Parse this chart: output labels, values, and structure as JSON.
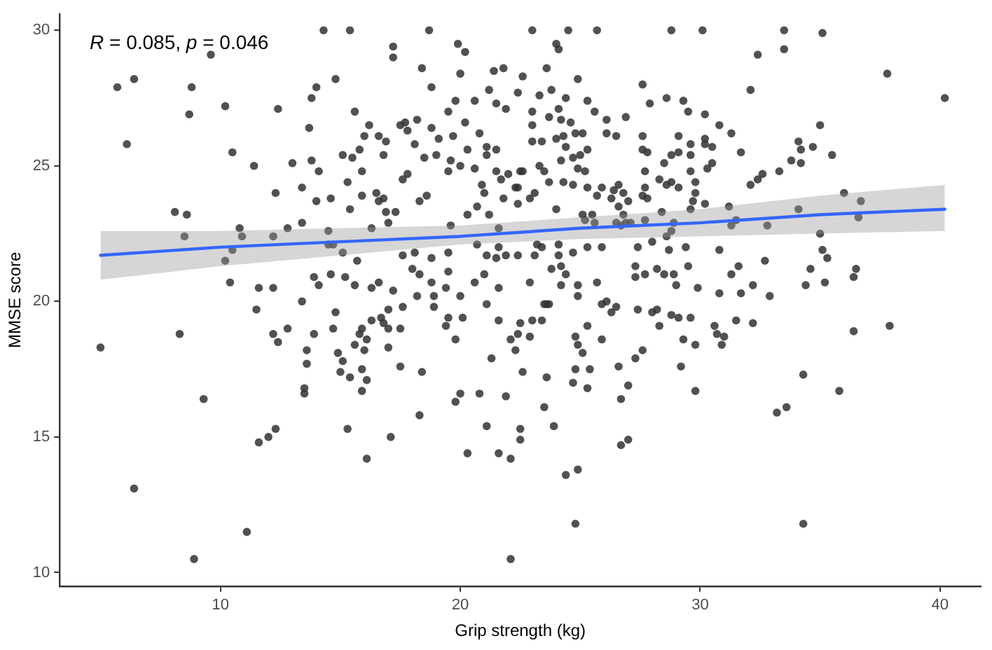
{
  "chart_data": {
    "type": "scatter",
    "xlabel": "Grip strength (kg)",
    "ylabel": "MMSE score",
    "annotations": [
      "R = 0.085, p = 0.046"
    ],
    "xlim": [
      3.3,
      41.7
    ],
    "xticks": [
      10,
      20,
      30,
      40
    ],
    "ylim": [
      9.5,
      30.6
    ],
    "yticks": [
      10,
      15,
      20,
      25,
      30
    ],
    "series": [
      {
        "marker": "circle",
        "color": "#333333",
        "x": [
          14.3,
          15.4,
          18.7,
          23.0,
          24.5,
          25.7,
          28.8,
          30.1,
          33.5,
          35.1,
          5.7,
          6.4,
          6.1,
          9.6,
          8.8,
          8.7,
          10.2,
          10.5,
          11.4,
          12.4,
          8.1,
          8.6,
          8.5,
          10.8,
          10.9,
          10.2,
          10.5,
          10.4,
          11.6,
          12.2,
          12.2,
          12.8,
          13.4,
          12.3,
          13.4,
          13.0,
          13.8,
          14.1,
          13.7,
          13.8,
          14.0,
          14.8,
          15.6,
          17.2,
          17.2,
          18.4,
          19.9,
          20.2,
          20.0,
          18.8,
          21.4,
          21.8,
          21.2,
          22.4,
          20.6,
          19.8,
          19.5,
          21.5,
          21.9,
          16.2,
          16.0,
          16.6,
          16.9,
          17.5,
          17.7,
          18.2,
          17.8,
          18.8,
          19.1,
          19.7,
          20.2,
          20.8,
          18.1,
          21.1,
          21.5,
          20.3,
          19.0,
          18.5,
          19.6,
          20.0,
          19.5,
          20.6,
          21.1,
          21.5,
          22.0,
          21.7,
          22.5,
          20.9,
          21.0,
          21.8,
          22.3,
          20.7,
          21.2,
          20.3,
          19.6,
          21.6,
          20.7,
          21.1,
          21.6,
          21.5,
          21.9,
          19.5,
          19.5,
          18.8,
          18.1,
          17.6,
          18.3,
          18.0,
          18.8,
          19.4,
          20.0,
          21.0,
          20.6,
          21.6,
          21.1,
          18.9,
          18.2,
          17.2,
          16.6,
          16.3,
          15.6,
          15.2,
          14.6,
          13.9,
          14.1,
          13.4,
          15.1,
          14.5,
          15.7,
          16.3,
          17.0,
          16.9,
          16.6,
          15.9,
          15.4,
          14.6,
          14.0,
          15.3,
          15.9,
          15.1,
          15.5,
          15.8,
          16.8,
          17.8,
          17.6,
          18.3,
          18.6,
          17.3,
          16.5,
          16.8,
          14.5,
          14.7,
          24.0,
          24.1,
          32.4,
          33.5,
          37.8,
          40.2,
          23.6,
          22.6,
          24.9,
          23.3,
          23.8,
          24.4,
          27.6,
          32.1,
          25.3,
          27.9,
          28.6,
          29.3,
          29.5,
          30.2,
          30.8,
          31.3,
          35.0,
          25.6,
          24.1,
          23.0,
          23.7,
          24.2,
          23.0,
          24.6,
          26.1,
          26.9,
          24.8,
          25.1,
          26.1,
          26.5,
          27.6,
          29.1,
          23.0,
          23.4,
          24.0,
          24.3,
          25.3,
          24.4,
          25.0,
          24.7,
          24.2,
          27.6,
          27.8,
          28.5,
          28.8,
          29.1,
          29.6,
          29.6,
          30.2,
          30.2,
          30.5,
          30.5,
          30.3,
          29.6,
          31.7,
          34.1,
          34.2,
          34.7,
          35.5,
          33.8,
          34.2,
          33.3,
          32.6,
          32.4,
          32.1,
          27.7,
          28.3,
          28.6,
          28.8,
          29.1,
          29.8,
          29.8,
          29.7,
          30.2,
          29.6,
          31.2,
          27.7,
          27.6,
          27.8,
          26.6,
          26.8,
          26.4,
          26.3,
          27.0,
          26.6,
          25.9,
          25.7,
          25.3,
          25.2,
          24.9,
          24.7,
          24.3,
          23.7,
          23.5,
          23.3,
          22.6,
          22.4,
          23.1,
          22.9,
          22.4,
          24.0,
          25.1,
          25.5,
          25.2,
          25.6,
          26.8,
          26.9,
          26.5,
          26.7,
          27.1,
          27.7,
          28.4,
          28.9,
          28.8,
          28.6,
          28.0,
          27.4,
          28.7,
          29.4,
          30.8,
          31.3,
          31.5,
          32.8,
          34.1,
          36.0,
          36.7,
          36.6,
          35.0,
          35.1,
          35.3,
          34.6,
          34.4,
          35.2,
          36.5,
          36.4,
          32.7,
          31.6,
          31.3,
          32.2,
          32.9,
          31.7,
          30.8,
          29.9,
          29.5,
          29.0,
          28.9,
          28.5,
          28.2,
          27.7,
          27.3,
          27.3,
          22.4,
          23.2,
          23.1,
          23.4,
          24.1,
          24.1,
          24.7,
          25.3,
          25.9,
          23.8,
          24.2,
          24.4,
          22.9,
          24.2,
          24.9,
          25.7,
          24.9,
          23.6,
          26.1,
          5.0,
          8.3,
          6.4,
          8.9,
          11.1,
          9.3,
          11.5,
          12.2,
          12.4,
          12.8,
          13.9,
          13.6,
          13.6,
          13.5,
          13.5,
          14.8,
          14.7,
          14.9,
          15.1,
          15.0,
          15.4,
          15.6,
          15.8,
          15.9,
          16.0,
          16.1,
          15.9,
          16.1,
          15.9,
          16.3,
          16.7,
          17.0,
          16.8,
          17.0,
          17.0,
          17.6,
          17.5,
          17.5,
          18.4,
          18.9,
          19.4,
          19.5,
          20.1,
          19.8,
          20.0,
          19.8,
          20.8,
          21.9,
          18.3,
          15.3,
          17.1,
          16.1,
          11.6,
          12.0,
          12.3,
          20.3,
          21.1,
          21.6,
          22.1,
          22.1,
          21.3,
          21.6,
          22.3,
          22.1,
          22.4,
          22.5,
          22.6,
          22.5,
          22.5,
          23.5,
          23.7,
          23.0,
          22.9,
          23.4,
          23.6,
          23.5,
          23.9,
          24.4,
          24.9,
          24.8,
          34.3,
          24.8,
          24.9,
          25.1,
          25.3,
          25.9,
          24.8,
          25.4,
          24.7,
          25.3,
          25.9,
          26.3,
          26.5,
          27.4,
          28.0,
          28.2,
          28.3,
          28.8,
          29.1,
          29.6,
          29.3,
          29.8,
          29.2,
          29.8,
          30.6,
          30.7,
          31.0,
          30.9,
          31.5,
          32.2,
          26.6,
          27.0,
          26.7,
          27.3,
          27.6,
          26.7,
          27.0,
          33.2,
          33.6,
          34.3,
          35.8,
          36.4,
          37.9
        ],
        "values": [
          30.0,
          30.0,
          30.0,
          30.0,
          30.0,
          30.0,
          30.0,
          30.0,
          30.0,
          29.9,
          27.9,
          28.2,
          25.8,
          29.1,
          27.9,
          26.9,
          27.2,
          25.5,
          25.0,
          27.1,
          23.3,
          23.2,
          22.4,
          22.7,
          22.4,
          21.5,
          21.9,
          20.7,
          20.5,
          20.5,
          22.4,
          22.7,
          22.9,
          24.0,
          24.2,
          25.1,
          25.2,
          24.8,
          26.4,
          27.5,
          27.9,
          28.2,
          27.0,
          29.4,
          29.0,
          28.6,
          29.5,
          29.2,
          28.4,
          27.9,
          28.5,
          28.6,
          27.8,
          27.7,
          27.4,
          27.4,
          27.0,
          27.3,
          27.1,
          26.5,
          26.1,
          26.1,
          25.9,
          26.5,
          26.6,
          26.7,
          26.3,
          26.4,
          26.0,
          26.1,
          26.6,
          26.2,
          25.8,
          25.7,
          25.6,
          25.6,
          25.4,
          25.3,
          25.2,
          25.0,
          24.8,
          24.9,
          25.4,
          24.8,
          24.7,
          24.5,
          24.8,
          24.3,
          24.0,
          23.8,
          24.2,
          23.5,
          23.2,
          23.2,
          22.8,
          22.7,
          22.1,
          21.7,
          22.0,
          21.6,
          21.7,
          21.8,
          21.1,
          21.6,
          21.8,
          21.7,
          21.0,
          21.2,
          20.7,
          20.5,
          20.2,
          21.0,
          20.7,
          20.5,
          19.9,
          20.2,
          20.2,
          20.4,
          20.7,
          20.5,
          20.6,
          20.9,
          21.0,
          20.9,
          20.6,
          20.0,
          21.8,
          22.1,
          21.5,
          22.7,
          22.9,
          23.3,
          23.7,
          23.9,
          23.4,
          23.8,
          23.7,
          24.4,
          24.8,
          25.4,
          25.3,
          25.6,
          25.4,
          24.7,
          24.5,
          23.7,
          23.9,
          23.3,
          24.0,
          23.8,
          22.6,
          22.1,
          29.5,
          29.3,
          29.1,
          29.3,
          28.4,
          27.5,
          28.6,
          28.3,
          28.2,
          27.6,
          27.8,
          27.5,
          28.0,
          27.8,
          27.4,
          27.3,
          27.5,
          27.4,
          27.0,
          26.9,
          26.5,
          26.2,
          26.5,
          27.0,
          27.1,
          27.0,
          26.8,
          26.7,
          26.5,
          26.6,
          26.7,
          26.8,
          26.2,
          26.2,
          26.2,
          26.1,
          26.1,
          26.1,
          25.9,
          25.9,
          26.0,
          26.1,
          25.6,
          25.7,
          25.4,
          25.3,
          25.2,
          25.6,
          25.5,
          25.1,
          25.4,
          25.5,
          25.8,
          25.4,
          26.0,
          25.8,
          25.7,
          25.1,
          24.9,
          24.8,
          25.5,
          25.9,
          25.6,
          25.7,
          25.4,
          25.2,
          25.1,
          24.8,
          24.7,
          24.5,
          24.3,
          24.8,
          24.5,
          24.3,
          24.4,
          24.2,
          24.4,
          24.0,
          23.7,
          23.6,
          23.4,
          23.5,
          24.2,
          23.9,
          23.8,
          24.3,
          24.0,
          24.1,
          23.8,
          23.7,
          23.5,
          24.2,
          23.9,
          24.2,
          24.8,
          24.9,
          24.3,
          24.4,
          24.4,
          24.8,
          25.0,
          24.8,
          24.2,
          24.0,
          23.8,
          23.6,
          23.4,
          23.2,
          23.2,
          23.0,
          22.9,
          23.2,
          22.9,
          22.9,
          22.8,
          22.9,
          23.0,
          23.3,
          22.9,
          22.6,
          22.4,
          22.2,
          22.0,
          21.9,
          22.0,
          21.9,
          22.8,
          23.0,
          22.8,
          23.4,
          24.0,
          23.7,
          23.1,
          22.5,
          21.9,
          21.6,
          21.2,
          20.6,
          20.7,
          21.2,
          20.9,
          21.5,
          21.3,
          21.0,
          20.6,
          20.2,
          20.3,
          20.3,
          20.5,
          21.3,
          20.6,
          21.0,
          21.0,
          21.2,
          21.0,
          20.9,
          21.3,
          21.7,
          22.1,
          21.7,
          22.0,
          22.1,
          21.7,
          21.8,
          22.0,
          22.0,
          21.2,
          21.3,
          21.0,
          20.7,
          20.6,
          20.6,
          20.7,
          20.2,
          19.9,
          20.0,
          18.3,
          18.8,
          13.1,
          10.5,
          11.5,
          16.4,
          19.7,
          18.8,
          18.5,
          19.0,
          18.8,
          18.2,
          17.7,
          16.8,
          16.6,
          19.6,
          19.0,
          18.1,
          17.8,
          17.4,
          17.2,
          18.4,
          18.8,
          19.0,
          18.2,
          18.6,
          17.5,
          17.1,
          16.7,
          19.3,
          19.4,
          19.7,
          19.2,
          19.0,
          18.3,
          19.8,
          19.0,
          17.6,
          17.4,
          19.8,
          19.1,
          19.4,
          19.4,
          18.6,
          16.6,
          16.3,
          16.6,
          16.5,
          15.8,
          15.3,
          15.0,
          14.2,
          14.8,
          15.0,
          15.3,
          14.4,
          15.4,
          14.4,
          14.2,
          10.5,
          17.9,
          19.3,
          18.2,
          18.6,
          18.8,
          19.2,
          17.4,
          15.3,
          14.9,
          19.9,
          19.9,
          19.3,
          18.7,
          19.3,
          17.2,
          16.1,
          15.4,
          13.6,
          13.8,
          11.8,
          11.8,
          18.7,
          18.4,
          18.1,
          19.1,
          18.6,
          17.5,
          17.5,
          17.0,
          16.8,
          19.9,
          19.6,
          19.8,
          19.7,
          19.6,
          19.7,
          19.1,
          19.5,
          19.4,
          19.4,
          18.6,
          18.4,
          17.6,
          16.7,
          19.1,
          18.8,
          18.7,
          18.4,
          19.3,
          19.2,
          17.6,
          16.9,
          16.4,
          17.9,
          18.2,
          14.7,
          14.9,
          15.9,
          16.1,
          17.3,
          16.7,
          18.9,
          19.1
        ]
      },
      {
        "type": "line",
        "marker": "none",
        "line_style": "solid",
        "color": "#3366ff",
        "x": [
          5,
          10,
          15,
          20,
          25,
          30,
          35,
          40.2
        ],
        "values": [
          21.7,
          22.0,
          22.2,
          22.4,
          22.7,
          22.9,
          23.2,
          23.4
        ],
        "lower": [
          20.8,
          21.3,
          21.7,
          22.1,
          22.3,
          22.4,
          22.5,
          22.6
        ],
        "upper": [
          22.6,
          22.6,
          22.7,
          22.8,
          23.1,
          23.4,
          23.9,
          24.3
        ]
      }
    ]
  }
}
